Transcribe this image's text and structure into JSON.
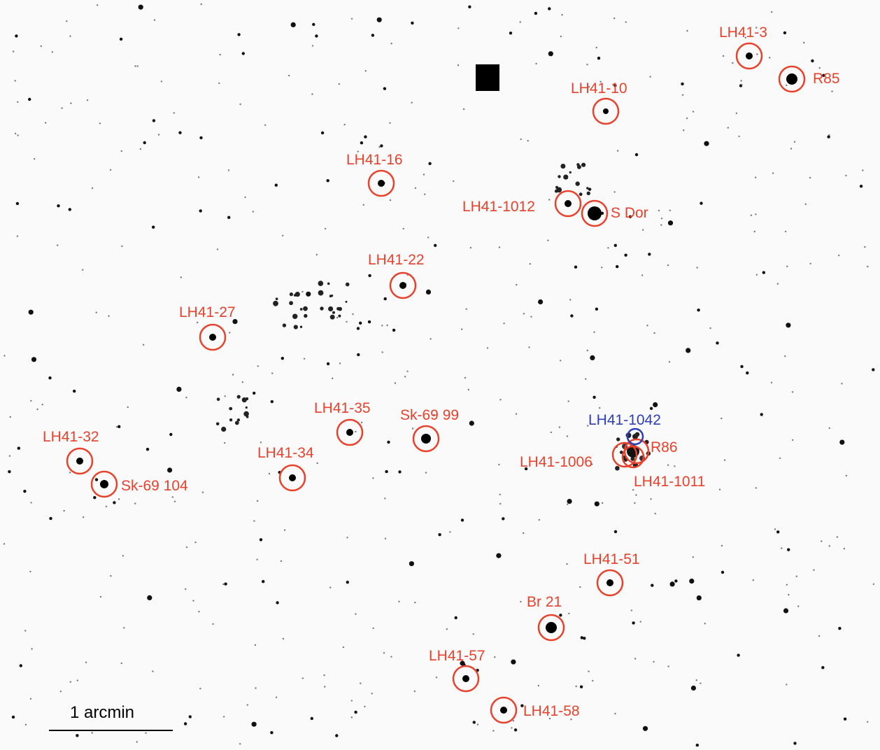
{
  "image": {
    "description_colors": {
      "background": "#fafafa",
      "star": "#000000",
      "marker_red": "#e8412c",
      "marker_blue": "#2d3fb8"
    }
  },
  "labels": {
    "lh41_3": "LH41-3",
    "r85": "R85",
    "lh41_10": "LH41-10",
    "lh41_16": "LH41-16",
    "lh41_1012": "LH41-1012",
    "s_dor": "S Dor",
    "lh41_22": "LH41-22",
    "lh41_27": "LH41-27",
    "lh41_35": "LH41-35",
    "sk69_99": "Sk-69 99",
    "lh41_1042": "LH41-1042",
    "r86": "R86",
    "lh41_32": "LH41-32",
    "lh41_34": "LH41-34",
    "lh41_1006": "LH41-1006",
    "sk69_104": "Sk-69 104",
    "lh41_1011": "LH41-1011",
    "lh41_51": "LH41-51",
    "br21": "Br 21",
    "lh41_57": "LH41-57",
    "lh41_58": "LH41-58"
  },
  "scale_bar": {
    "label": "1 arcmin"
  }
}
